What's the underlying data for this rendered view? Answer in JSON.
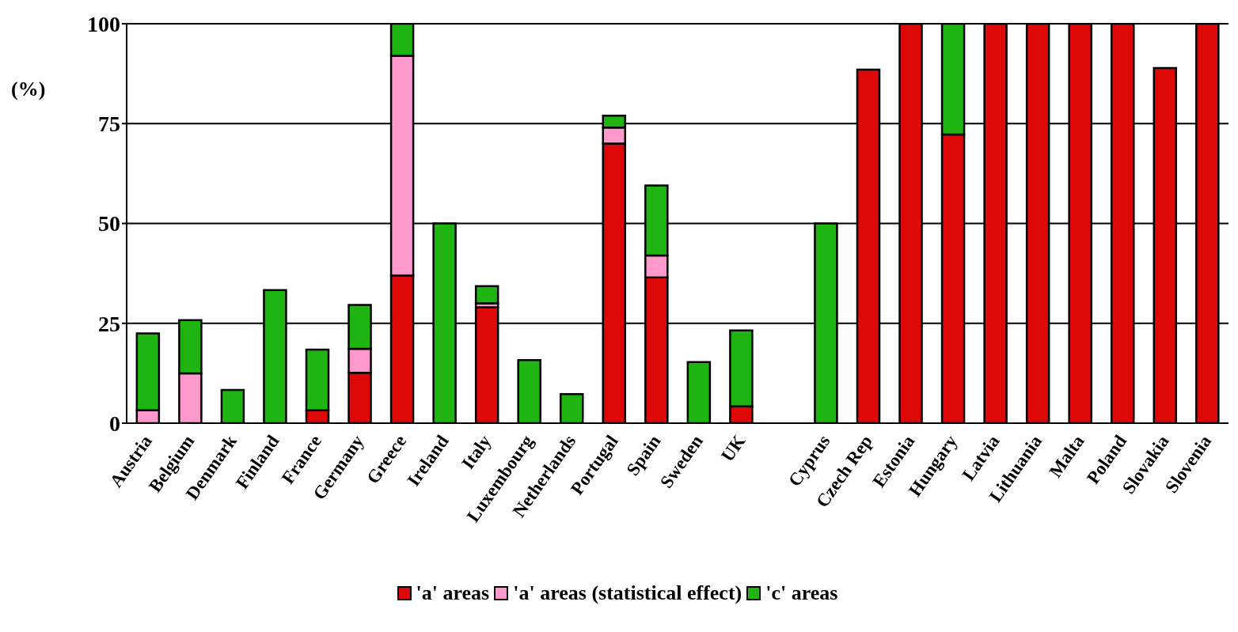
{
  "chart_data": {
    "type": "bar",
    "stacked": true,
    "ylabel": "(%)",
    "categories": [
      "Austria",
      "Belgium",
      "Denmark",
      "Finland",
      "France",
      "Germany",
      "Greece",
      "Ireland",
      "Italy",
      "Luxembourg",
      "Netherlands",
      "Portugal",
      "Spain",
      "Sweden",
      "UK",
      null,
      "Cyprus",
      "Czech Rep",
      "Estonia",
      "Hungary",
      "Latvia",
      "Lithuania",
      "Malta",
      "Poland",
      "Slovakia",
      "Slovenia"
    ],
    "series": [
      {
        "name": "'a' areas",
        "color": "#dd0808",
        "values": [
          null,
          null,
          null,
          null,
          3.2,
          12.6,
          37,
          null,
          29,
          null,
          null,
          70,
          36.5,
          null,
          4.2,
          null,
          null,
          88.5,
          100,
          72.3,
          100,
          100,
          100,
          100,
          88.9,
          100
        ]
      },
      {
        "name": "'a' areas (statistical effect)",
        "color": "#ff99cc",
        "values": [
          3.2,
          12.5,
          null,
          null,
          null,
          6,
          55,
          null,
          1,
          null,
          null,
          4,
          5.5,
          null,
          null,
          null,
          null,
          null,
          null,
          null,
          null,
          null,
          null,
          null,
          null,
          null
        ]
      },
      {
        "name": "'c' areas",
        "color": "#20b412",
        "values": [
          19.3,
          13.3,
          8.3,
          33.3,
          15.2,
          11,
          8,
          50,
          4.3,
          15.8,
          7.3,
          3,
          17.5,
          15.3,
          19,
          null,
          50,
          null,
          null,
          27.7,
          null,
          null,
          null,
          null,
          null,
          null
        ]
      }
    ],
    "ylim": [
      0,
      100
    ],
    "yticks": [
      0,
      25,
      50,
      75,
      100
    ],
    "grid": "y",
    "legend": "bottom"
  }
}
